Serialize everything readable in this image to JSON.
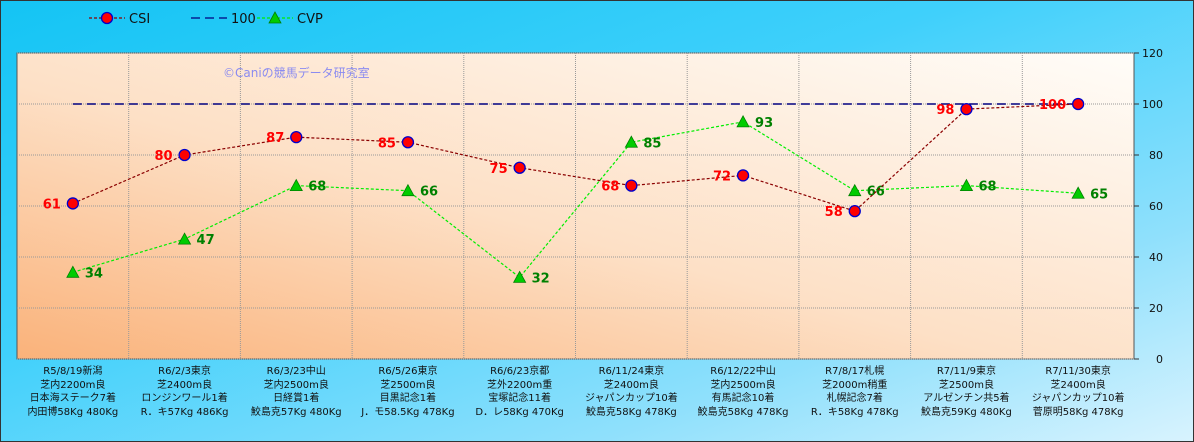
{
  "chart_data": {
    "type": "line",
    "categories": [
      [
        "R5/8/19新潟",
        "芝内2200m良",
        "日本海ステーク7着",
        "内田博58Kg 480Kg"
      ],
      [
        "R6/2/3東京",
        "芝2400m良",
        "ロンジンワール1着",
        "R．キ57Kg 486Kg"
      ],
      [
        "R6/3/23中山",
        "芝内2500m良",
        "日経賞1着",
        "鮫島克57Kg 480Kg"
      ],
      [
        "R6/5/26東京",
        "芝2500m良",
        "目黒記念1着",
        "J．モ58.5Kg 478Kg"
      ],
      [
        "R6/6/23京都",
        "芝外2200m重",
        "宝塚記念11着",
        "D．レ58Kg 470Kg"
      ],
      [
        "R6/11/24東京",
        "芝2400m良",
        "ジャパンカップ10着",
        "鮫島克58Kg 478Kg"
      ],
      [
        "R6/12/22中山",
        "芝内2500m良",
        "有馬記念10着",
        "鮫島克58Kg 478Kg"
      ],
      [
        "R7/8/17札幌",
        "芝2000m稍重",
        "札幌記念7着",
        "R．キ58Kg 478Kg"
      ],
      [
        "R7/11/9東京",
        "芝2500m良",
        "アルゼンチン共5着",
        "鮫島克59Kg 480Kg"
      ],
      [
        "R7/11/30東京",
        "芝2400m良",
        "ジャパンカップ10着",
        "菅原明58Kg 478Kg"
      ]
    ],
    "series": [
      {
        "name": "CSI",
        "values": [
          61,
          80,
          87,
          85,
          75,
          68,
          72,
          58,
          98,
          100
        ],
        "color": "#8b0000",
        "marker": "circle",
        "label_color": "#ff0000"
      },
      {
        "name": "100",
        "values": [
          100,
          100,
          100,
          100,
          100,
          100,
          100,
          100,
          100,
          100
        ],
        "color": "#000080"
      },
      {
        "name": "CVP",
        "values": [
          34,
          47,
          68,
          66,
          32,
          85,
          93,
          66,
          68,
          65
        ],
        "color": "#00ee00",
        "marker": "triangle",
        "label_color": "#008000"
      }
    ],
    "ylim": [
      0,
      120
    ],
    "yticks": [
      0,
      20,
      40,
      60,
      80,
      100,
      120
    ],
    "y_axis_side": "right",
    "grid": true,
    "legend": "top-left",
    "watermark": "©Caniの競馬データ研究室"
  }
}
